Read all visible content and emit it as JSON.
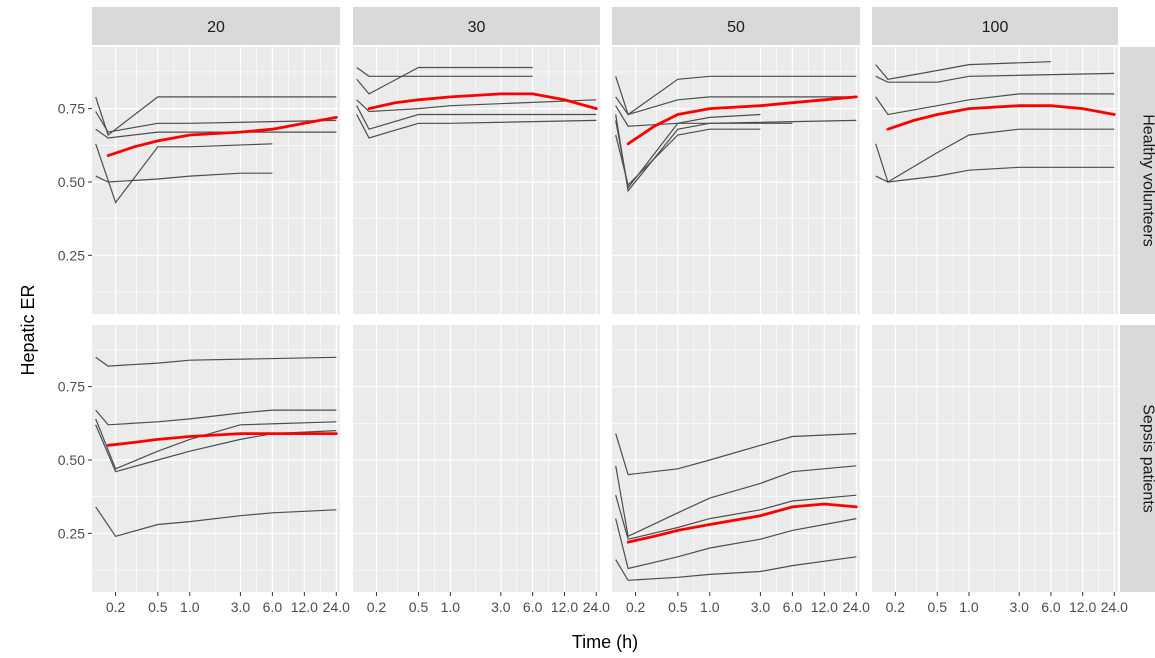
{
  "chart_data": {
    "type": "line",
    "xlabel": "Time (h)",
    "ylabel": "Hepatic ER",
    "x_scale": "log",
    "xlim": [
      0.12,
      26
    ],
    "ylim": [
      0.05,
      0.96
    ],
    "x_ticks": [
      0.2,
      0.5,
      1.0,
      3.0,
      6.0,
      12.0,
      24.0
    ],
    "x_tick_labels": [
      "0.2",
      "0.5",
      "1.0",
      "3.0",
      "6.0",
      "12.0",
      "24.0"
    ],
    "y_ticks": [
      0.25,
      0.5,
      0.75
    ],
    "y_tick_labels": [
      "0.25",
      "0.50",
      "0.75"
    ],
    "col_facets": [
      "20",
      "30",
      "50",
      "100"
    ],
    "row_facets": [
      "Healthy volunteers",
      "Sepsis patients"
    ],
    "grid": true,
    "colors": {
      "panel_background": "#ebebeb",
      "grid": "#ffffff",
      "strip_background": "#d9d9d9",
      "individual_line": "#4d4d4d",
      "mean_line": "#ff0000"
    },
    "panels": [
      {
        "col": "20",
        "row": "Healthy volunteers",
        "individuals": [
          {
            "x": [
              0.13,
              0.17,
              0.5,
              1.0,
              24.0
            ],
            "y": [
              0.79,
              0.66,
              0.79,
              0.79,
              0.79
            ]
          },
          {
            "x": [
              0.13,
              0.17,
              0.5,
              1.0,
              24.0
            ],
            "y": [
              0.74,
              0.67,
              0.7,
              0.7,
              0.71
            ]
          },
          {
            "x": [
              0.13,
              0.17,
              0.5,
              1.0,
              24.0
            ],
            "y": [
              0.68,
              0.65,
              0.67,
              0.67,
              0.67
            ]
          },
          {
            "x": [
              0.13,
              0.2,
              0.5,
              1.0,
              6.0
            ],
            "y": [
              0.63,
              0.43,
              0.62,
              0.62,
              0.63
            ]
          },
          {
            "x": [
              0.13,
              0.17,
              0.5,
              1.0,
              3.0,
              6.0
            ],
            "y": [
              0.52,
              0.5,
              0.51,
              0.52,
              0.53,
              0.53
            ]
          }
        ],
        "mean": {
          "x": [
            0.17,
            0.3,
            0.5,
            1.0,
            3.0,
            6.0,
            12.0,
            24.0
          ],
          "y": [
            0.59,
            0.62,
            0.64,
            0.66,
            0.67,
            0.68,
            0.7,
            0.72
          ]
        }
      },
      {
        "col": "30",
        "row": "Healthy volunteers",
        "individuals": [
          {
            "x": [
              0.13,
              0.17,
              0.5,
              1.0,
              6.0
            ],
            "y": [
              0.89,
              0.86,
              0.86,
              0.86,
              0.86
            ]
          },
          {
            "x": [
              0.13,
              0.17,
              0.5,
              1.0,
              6.0
            ],
            "y": [
              0.85,
              0.8,
              0.89,
              0.89,
              0.89
            ]
          },
          {
            "x": [
              0.13,
              0.17,
              0.5,
              1.0,
              24.0
            ],
            "y": [
              0.78,
              0.74,
              0.75,
              0.76,
              0.78
            ]
          },
          {
            "x": [
              0.13,
              0.17,
              0.5,
              1.0,
              24.0
            ],
            "y": [
              0.76,
              0.68,
              0.73,
              0.73,
              0.73
            ]
          },
          {
            "x": [
              0.13,
              0.17,
              0.5,
              1.0,
              24.0
            ],
            "y": [
              0.73,
              0.65,
              0.7,
              0.7,
              0.71
            ]
          }
        ],
        "mean": {
          "x": [
            0.17,
            0.3,
            0.5,
            1.0,
            3.0,
            6.0,
            12.0,
            24.0
          ],
          "y": [
            0.75,
            0.77,
            0.78,
            0.79,
            0.8,
            0.8,
            0.78,
            0.75
          ]
        }
      },
      {
        "col": "50",
        "row": "Healthy volunteers",
        "individuals": [
          {
            "x": [
              0.13,
              0.17,
              0.5,
              1.0,
              24.0
            ],
            "y": [
              0.86,
              0.73,
              0.85,
              0.86,
              0.86
            ]
          },
          {
            "x": [
              0.13,
              0.17,
              0.5,
              1.0,
              24.0
            ],
            "y": [
              0.79,
              0.73,
              0.78,
              0.79,
              0.79
            ]
          },
          {
            "x": [
              0.13,
              0.17,
              0.5,
              1.0,
              6.0
            ],
            "y": [
              0.76,
              0.69,
              0.7,
              0.7,
              0.7
            ]
          },
          {
            "x": [
              0.13,
              0.17,
              0.5,
              1.0,
              24.0
            ],
            "y": [
              0.73,
              0.47,
              0.68,
              0.7,
              0.71
            ]
          },
          {
            "x": [
              0.13,
              0.17,
              0.5,
              1.0,
              3.0
            ],
            "y": [
              0.71,
              0.48,
              0.7,
              0.72,
              0.73
            ]
          },
          {
            "x": [
              0.13,
              0.17,
              0.5,
              1.0,
              3.0
            ],
            "y": [
              0.66,
              0.49,
              0.66,
              0.68,
              0.68
            ]
          }
        ],
        "mean": {
          "x": [
            0.17,
            0.3,
            0.5,
            1.0,
            3.0,
            6.0,
            12.0,
            24.0
          ],
          "y": [
            0.63,
            0.69,
            0.73,
            0.75,
            0.76,
            0.77,
            0.78,
            0.79
          ]
        }
      },
      {
        "col": "100",
        "row": "Healthy volunteers",
        "individuals": [
          {
            "x": [
              0.13,
              0.17,
              0.5,
              1.0,
              6.0
            ],
            "y": [
              0.9,
              0.85,
              0.88,
              0.9,
              0.91
            ]
          },
          {
            "x": [
              0.13,
              0.17,
              0.5,
              1.0,
              24.0
            ],
            "y": [
              0.86,
              0.84,
              0.84,
              0.86,
              0.87
            ]
          },
          {
            "x": [
              0.13,
              0.17,
              0.5,
              1.0,
              3.0,
              24.0
            ],
            "y": [
              0.79,
              0.73,
              0.76,
              0.78,
              0.8,
              0.8
            ]
          },
          {
            "x": [
              0.13,
              0.17,
              0.5,
              1.0,
              3.0,
              24.0
            ],
            "y": [
              0.63,
              0.5,
              0.6,
              0.66,
              0.68,
              0.68
            ]
          },
          {
            "x": [
              0.13,
              0.17,
              0.5,
              1.0,
              3.0,
              24.0
            ],
            "y": [
              0.52,
              0.5,
              0.52,
              0.54,
              0.55,
              0.55
            ]
          }
        ],
        "mean": {
          "x": [
            0.17,
            0.3,
            0.5,
            1.0,
            3.0,
            6.0,
            12.0,
            24.0
          ],
          "y": [
            0.68,
            0.71,
            0.73,
            0.75,
            0.76,
            0.76,
            0.75,
            0.73
          ]
        }
      },
      {
        "col": "20",
        "row": "Sepsis patients",
        "individuals": [
          {
            "x": [
              0.13,
              0.17,
              0.5,
              1.0,
              24.0
            ],
            "y": [
              0.85,
              0.82,
              0.83,
              0.84,
              0.85
            ]
          },
          {
            "x": [
              0.13,
              0.17,
              0.5,
              1.0,
              3.0,
              6.0,
              24.0
            ],
            "y": [
              0.67,
              0.62,
              0.63,
              0.64,
              0.66,
              0.67,
              0.67
            ]
          },
          {
            "x": [
              0.13,
              0.2,
              0.5,
              1.0,
              3.0,
              24.0
            ],
            "y": [
              0.64,
              0.47,
              0.53,
              0.57,
              0.62,
              0.63
            ]
          },
          {
            "x": [
              0.13,
              0.2,
              0.5,
              1.0,
              3.0,
              6.0,
              24.0
            ],
            "y": [
              0.62,
              0.46,
              0.5,
              0.53,
              0.57,
              0.59,
              0.6
            ]
          },
          {
            "x": [
              0.13,
              0.2,
              0.5,
              1.0,
              3.0,
              6.0,
              24.0
            ],
            "y": [
              0.34,
              0.24,
              0.28,
              0.29,
              0.31,
              0.32,
              0.33
            ]
          }
        ],
        "mean": {
          "x": [
            0.17,
            0.3,
            0.5,
            1.0,
            3.0,
            6.0,
            12.0,
            24.0
          ],
          "y": [
            0.55,
            0.56,
            0.57,
            0.58,
            0.59,
            0.59,
            0.59,
            0.59
          ]
        }
      },
      {
        "col": "30",
        "row": "Sepsis patients",
        "individuals": [],
        "mean": null
      },
      {
        "col": "50",
        "row": "Sepsis patients",
        "individuals": [
          {
            "x": [
              0.13,
              0.17,
              0.5,
              1.0,
              3.0,
              6.0,
              24.0
            ],
            "y": [
              0.59,
              0.45,
              0.47,
              0.5,
              0.55,
              0.58,
              0.59
            ]
          },
          {
            "x": [
              0.13,
              0.17,
              0.5,
              1.0,
              3.0,
              6.0,
              24.0
            ],
            "y": [
              0.48,
              0.24,
              0.32,
              0.37,
              0.42,
              0.46,
              0.48
            ]
          },
          {
            "x": [
              0.13,
              0.17,
              0.5,
              1.0,
              3.0,
              6.0,
              24.0
            ],
            "y": [
              0.38,
              0.23,
              0.27,
              0.3,
              0.33,
              0.36,
              0.38
            ]
          },
          {
            "x": [
              0.13,
              0.17,
              0.5,
              1.0,
              3.0,
              6.0,
              24.0
            ],
            "y": [
              0.3,
              0.13,
              0.17,
              0.2,
              0.23,
              0.26,
              0.3
            ]
          },
          {
            "x": [
              0.13,
              0.17,
              0.5,
              1.0,
              3.0,
              6.0,
              24.0
            ],
            "y": [
              0.16,
              0.09,
              0.1,
              0.11,
              0.12,
              0.14,
              0.17
            ]
          }
        ],
        "mean": {
          "x": [
            0.17,
            0.3,
            0.5,
            1.0,
            3.0,
            6.0,
            12.0,
            24.0
          ],
          "y": [
            0.22,
            0.24,
            0.26,
            0.28,
            0.31,
            0.34,
            0.35,
            0.34
          ]
        }
      },
      {
        "col": "100",
        "row": "Sepsis patients",
        "individuals": [],
        "mean": null
      }
    ]
  }
}
